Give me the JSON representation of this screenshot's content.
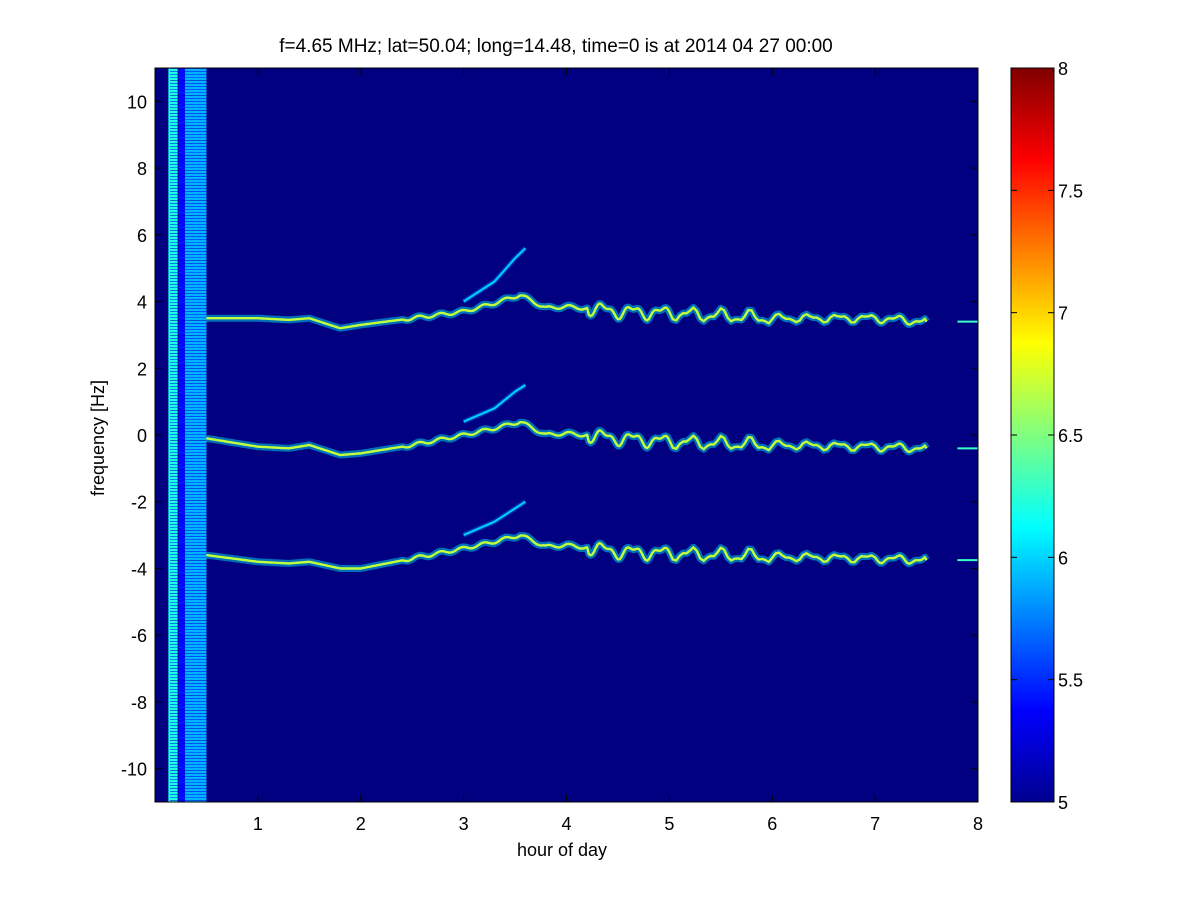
{
  "chart_data": {
    "type": "heatmap",
    "title": "f=4.65 MHz;  lat=50.04; long=14.48, time=0 is at 2014 04 27 00:00",
    "xlabel": "hour of day",
    "ylabel": "frequency [Hz]",
    "xlim": [
      0,
      8
    ],
    "ylim": [
      -11,
      11
    ],
    "x_ticks": [
      "1",
      "2",
      "3",
      "4",
      "5",
      "6",
      "7",
      "8"
    ],
    "y_ticks": [
      "-10",
      "-8",
      "-6",
      "-4",
      "-2",
      "0",
      "2",
      "4",
      "6",
      "8",
      "10"
    ],
    "colorbar": {
      "range": [
        5,
        8
      ],
      "ticks": [
        "5",
        "5.5",
        "6",
        "6.5",
        "7",
        "7.5",
        "8"
      ],
      "colormap": "jet"
    },
    "background_value": 5,
    "traces": [
      {
        "name": "upper",
        "points": [
          [
            0.5,
            3.5
          ],
          [
            1.0,
            3.5
          ],
          [
            1.3,
            3.45
          ],
          [
            1.5,
            3.5
          ],
          [
            1.8,
            3.2
          ],
          [
            2.0,
            3.3
          ],
          [
            2.5,
            3.5
          ],
          [
            3.0,
            3.7
          ],
          [
            3.3,
            3.95
          ],
          [
            3.55,
            4.2
          ],
          [
            3.8,
            3.8
          ],
          [
            4.0,
            3.85
          ],
          [
            4.5,
            3.7
          ],
          [
            5.0,
            3.65
          ],
          [
            6.0,
            3.5
          ],
          [
            7.0,
            3.5
          ],
          [
            7.5,
            3.4
          ]
        ]
      },
      {
        "name": "middle",
        "points": [
          [
            0.5,
            -0.1
          ],
          [
            1.0,
            -0.35
          ],
          [
            1.3,
            -0.4
          ],
          [
            1.5,
            -0.3
          ],
          [
            1.8,
            -0.6
          ],
          [
            2.0,
            -0.55
          ],
          [
            2.5,
            -0.3
          ],
          [
            3.0,
            0
          ],
          [
            3.3,
            0.2
          ],
          [
            3.55,
            0.4
          ],
          [
            3.8,
            0
          ],
          [
            4.0,
            0.05
          ],
          [
            4.5,
            -0.1
          ],
          [
            5.0,
            -0.2
          ],
          [
            6.0,
            -0.3
          ],
          [
            7.0,
            -0.35
          ],
          [
            7.5,
            -0.4
          ]
        ]
      },
      {
        "name": "lower",
        "points": [
          [
            0.5,
            -3.6
          ],
          [
            1.0,
            -3.8
          ],
          [
            1.3,
            -3.85
          ],
          [
            1.5,
            -3.8
          ],
          [
            1.8,
            -4.0
          ],
          [
            2.0,
            -4.0
          ],
          [
            2.5,
            -3.7
          ],
          [
            3.0,
            -3.4
          ],
          [
            3.3,
            -3.2
          ],
          [
            3.55,
            -3.0
          ],
          [
            3.8,
            -3.35
          ],
          [
            4.0,
            -3.3
          ],
          [
            4.5,
            -3.5
          ],
          [
            5.0,
            -3.55
          ],
          [
            6.0,
            -3.65
          ],
          [
            7.0,
            -3.7
          ],
          [
            7.5,
            -3.75
          ]
        ]
      }
    ],
    "secondary_traces": [
      {
        "name": "upper-echo",
        "points": [
          [
            3.0,
            4.0
          ],
          [
            3.3,
            4.6
          ],
          [
            3.5,
            5.3
          ],
          [
            3.6,
            5.6
          ]
        ]
      },
      {
        "name": "middle-echo",
        "points": [
          [
            3.0,
            0.4
          ],
          [
            3.3,
            0.8
          ],
          [
            3.5,
            1.3
          ],
          [
            3.6,
            1.5
          ]
        ]
      },
      {
        "name": "lower-echo",
        "points": [
          [
            3.0,
            -3.0
          ],
          [
            3.3,
            -2.6
          ],
          [
            3.5,
            -2.2
          ],
          [
            3.6,
            -2.0
          ]
        ]
      }
    ],
    "left_band": {
      "x_range": [
        0,
        0.5
      ],
      "columns": [
        [
          0.13,
          0.22,
          6.2
        ],
        [
          0.29,
          0.5,
          5.9
        ],
        [
          0.23,
          0.29,
          5.4
        ]
      ]
    },
    "grid": false,
    "legend": "none"
  }
}
